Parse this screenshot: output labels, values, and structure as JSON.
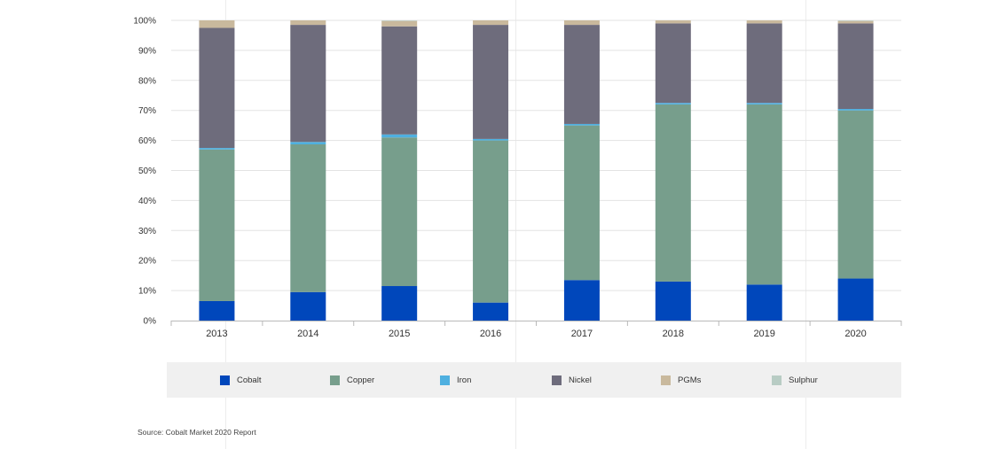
{
  "chart_data": {
    "type": "bar",
    "stacked": true,
    "categories": [
      "2013",
      "2014",
      "2015",
      "2016",
      "2017",
      "2018",
      "2019",
      "2020"
    ],
    "ylim": [
      0,
      100
    ],
    "ytick_labels": [
      "0%",
      "10%",
      "20%",
      "30%",
      "40%",
      "50%",
      "60%",
      "70%",
      "80%",
      "90%",
      "100%"
    ],
    "grid": true,
    "legend_position": "bottom",
    "series": [
      {
        "name": "Cobalt",
        "color": "#0047bb",
        "values": [
          6.5,
          9.5,
          11.5,
          6,
          13.5,
          13,
          12,
          14
        ]
      },
      {
        "name": "Copper",
        "color": "#779e8c",
        "values": [
          50.5,
          49.2,
          49.5,
          54,
          51.5,
          59,
          60,
          56
        ]
      },
      {
        "name": "Iron",
        "color": "#4fb0e0",
        "values": [
          0.5,
          0.8,
          1,
          0.5,
          0.5,
          0.5,
          0.5,
          0.5
        ]
      },
      {
        "name": "Nickel",
        "color": "#6e6c7c",
        "values": [
          40,
          39,
          36,
          38,
          33,
          26.5,
          26.5,
          28.5
        ]
      },
      {
        "name": "PGMs",
        "color": "#c9b99d",
        "values": [
          2.5,
          1.5,
          1.8,
          1.5,
          1.5,
          1,
          1,
          0.8
        ]
      },
      {
        "name": "Sulphur",
        "color": "#b8ccc4",
        "values": [
          0,
          0,
          0.2,
          0,
          0,
          0,
          0,
          0.2
        ]
      }
    ]
  },
  "source": "Source: Cobalt Market 2020 Report"
}
